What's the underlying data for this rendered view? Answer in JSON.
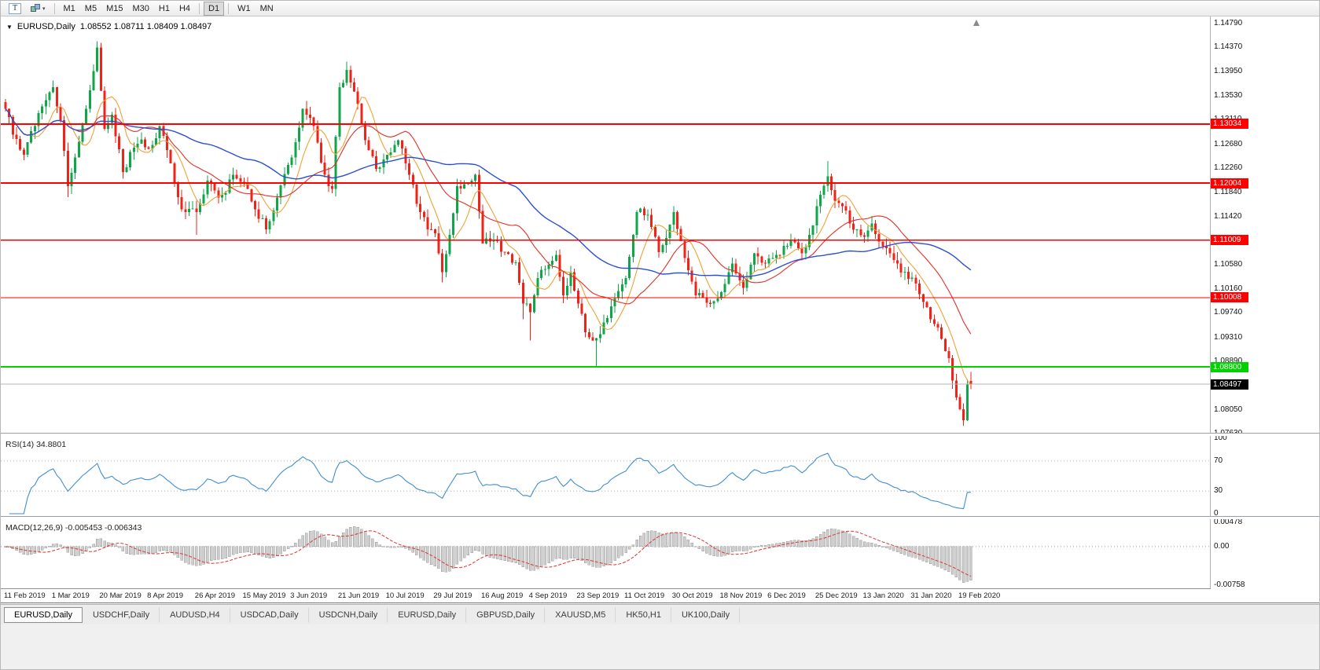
{
  "toolbar": {
    "tools": [
      {
        "name": "text-tool",
        "glyph": "T"
      },
      {
        "name": "pointer-tool",
        "glyph": "▾"
      }
    ],
    "timeframe_groups": [
      [
        "M1",
        "M5",
        "M15",
        "M30",
        "H1",
        "H4"
      ],
      [
        "D1"
      ],
      [
        "W1",
        "MN"
      ]
    ],
    "active_timeframe": "D1"
  },
  "chart": {
    "header": {
      "collapse_glyph": "▼",
      "title": "EURUSD,Daily",
      "ohlc": "1.08552 1.08711 1.08409 1.08497"
    },
    "colors": {
      "up": "#0fa648",
      "down": "#ef2318",
      "ma_fast": "#efa238",
      "ma_mid": "#e03028",
      "ma_slow": "#2c4fd0",
      "rsi": "#3f8ed2",
      "macd_hist": "#cdcdcd",
      "macd_hist_stroke": "#8f8f8f",
      "macd_signal": "#e23030",
      "price_line": "#b6b6b6",
      "price_badge": "#000000",
      "level_red": "#fe0000",
      "level_green": "#00d200"
    },
    "y_ticks": [
      "1.14790",
      "1.14370",
      "1.13950",
      "1.13530",
      "1.13110",
      "1.12680",
      "1.12260",
      "1.11840",
      "1.11420",
      "1.11000",
      "1.10580",
      "1.10160",
      "1.09740",
      "1.09310",
      "1.08890",
      "1.08470",
      "1.08050",
      "1.07630"
    ],
    "current_price": {
      "value": 1.08497,
      "label": "1.08497"
    }
  },
  "chart_data": {
    "type": "candlestick",
    "symbol": "EURUSD",
    "timeframe": "Daily",
    "ylim": [
      1.0765,
      1.1491
    ],
    "x_tick_labels": [
      "11 Feb 2019",
      "1 Mar 2019",
      "20 Mar 2019",
      "8 Apr 2019",
      "26 Apr 2019",
      "15 May 2019",
      "3 Jun 2019",
      "21 Jun 2019",
      "10 Jul 2019",
      "29 Jul 2019",
      "16 Aug 2019",
      "4 Sep 2019",
      "23 Sep 2019",
      "11 Oct 2019",
      "30 Oct 2019",
      "18 Nov 2019",
      "6 Dec 2019",
      "25 Dec 2019",
      "13 Jan 2020",
      "31 Jan 2020",
      "19 Feb 2020"
    ],
    "x_tick_step": 13,
    "price_waypoints": [
      [
        0,
        1.133
      ],
      [
        2,
        1.1285
      ],
      [
        5,
        1.125
      ],
      [
        8,
        1.13
      ],
      [
        11,
        1.1345
      ],
      [
        13,
        1.1368
      ],
      [
        15,
        1.131
      ],
      [
        17,
        1.1195
      ],
      [
        19,
        1.1245
      ],
      [
        22,
        1.133
      ],
      [
        25,
        1.1437
      ],
      [
        27,
        1.1295
      ],
      [
        29,
        1.132
      ],
      [
        32,
        1.122
      ],
      [
        35,
        1.1262
      ],
      [
        39,
        1.126
      ],
      [
        42,
        1.13
      ],
      [
        45,
        1.1235
      ],
      [
        48,
        1.1155
      ],
      [
        52,
        1.115
      ],
      [
        55,
        1.1205
      ],
      [
        58,
        1.1175
      ],
      [
        62,
        1.1215
      ],
      [
        65,
        1.12
      ],
      [
        68,
        1.1155
      ],
      [
        71,
        1.112
      ],
      [
        74,
        1.1175
      ],
      [
        78,
        1.1245
      ],
      [
        81,
        1.133
      ],
      [
        84,
        1.13
      ],
      [
        87,
        1.1215
      ],
      [
        89,
        1.119
      ],
      [
        91,
        1.1368
      ],
      [
        93,
        1.1398
      ],
      [
        95,
        1.136
      ],
      [
        98,
        1.1275
      ],
      [
        101,
        1.1225
      ],
      [
        104,
        1.125
      ],
      [
        107,
        1.1275
      ],
      [
        110,
        1.1215
      ],
      [
        113,
        1.115
      ],
      [
        115,
        1.112
      ],
      [
        117,
        1.1113
      ],
      [
        119,
        1.1045
      ],
      [
        121,
        1.111
      ],
      [
        123,
        1.1195
      ],
      [
        126,
        1.12
      ],
      [
        128,
        1.1215
      ],
      [
        130,
        1.1095
      ],
      [
        133,
        1.1102
      ],
      [
        136,
        1.108
      ],
      [
        139,
        1.1062
      ],
      [
        141,
        1.099
      ],
      [
        143,
        1.0975
      ],
      [
        145,
        1.1035
      ],
      [
        148,
        1.1058
      ],
      [
        150,
        1.1075
      ],
      [
        152,
        1.1005
      ],
      [
        154,
        1.1045
      ],
      [
        156,
        1.099
      ],
      [
        158,
        1.094
      ],
      [
        161,
        1.093
      ],
      [
        164,
        1.0965
      ],
      [
        169,
        1.1035
      ],
      [
        172,
        1.115
      ],
      [
        175,
        1.1145
      ],
      [
        178,
        1.108
      ],
      [
        180,
        1.1105
      ],
      [
        182,
        1.115
      ],
      [
        185,
        1.107
      ],
      [
        188,
        1.1005
      ],
      [
        192,
        1.099
      ],
      [
        195,
        1.101
      ],
      [
        198,
        1.106
      ],
      [
        201,
        1.1018
      ],
      [
        204,
        1.1078
      ],
      [
        207,
        1.106
      ],
      [
        211,
        1.1075
      ],
      [
        214,
        1.11
      ],
      [
        217,
        1.1078
      ],
      [
        219,
        1.111
      ],
      [
        222,
        1.118
      ],
      [
        224,
        1.1212
      ],
      [
        226,
        1.117
      ],
      [
        228,
        1.116
      ],
      [
        230,
        1.113
      ],
      [
        232,
        1.112
      ],
      [
        234,
        1.1107
      ],
      [
        236,
        1.113
      ],
      [
        239,
        1.109
      ],
      [
        242,
        1.1066
      ],
      [
        245,
        1.1046
      ],
      [
        248,
        1.1025
      ],
      [
        251,
        1.0984
      ],
      [
        253,
        1.0955
      ],
      [
        255,
        1.0929
      ],
      [
        257,
        1.0895
      ],
      [
        259,
        1.0827
      ],
      [
        260,
        1.0806
      ],
      [
        261,
        1.0787
      ],
      [
        262,
        1.0849
      ],
      [
        263,
        1.08497
      ]
    ],
    "spikes": [
      {
        "i": 17,
        "low": 1.1176
      },
      {
        "i": 25,
        "high": 1.1448
      },
      {
        "i": 52,
        "low": 1.111
      },
      {
        "i": 93,
        "high": 1.1412
      },
      {
        "i": 119,
        "low": 1.1027
      },
      {
        "i": 141,
        "low": 1.0963
      },
      {
        "i": 143,
        "low": 1.0926
      },
      {
        "i": 161,
        "low": 1.0879
      },
      {
        "i": 224,
        "high": 1.1239
      },
      {
        "i": 261,
        "low": 1.0777
      }
    ],
    "last_candle": {
      "open": 1.08552,
      "high": 1.08711,
      "low": 1.08409,
      "close": 1.08497
    },
    "levels": [
      {
        "price": 1.13034,
        "label": "1.13034",
        "color": "#fe0000",
        "width": 2
      },
      {
        "price": 1.12004,
        "label": "1.12004",
        "color": "#fe0000",
        "width": 2
      },
      {
        "price": 1.11009,
        "label": "1.11009",
        "color": "#fe0000",
        "width": 1.3
      },
      {
        "price": 1.10008,
        "label": "1.10008",
        "color": "#fe0000",
        "width": 1.3
      },
      {
        "price": 1.088,
        "label": "1.08800",
        "color": "#00d200",
        "width": 2
      }
    ],
    "moving_averages": [
      {
        "period": 8,
        "color_key": "ma_fast"
      },
      {
        "period": 20,
        "color_key": "ma_mid"
      },
      {
        "period": 50,
        "color_key": "ma_slow"
      }
    ],
    "indicators": {
      "rsi": {
        "label": "RSI(14) 34.8801",
        "period": 14,
        "value": 34.8801,
        "guide_levels": [
          70,
          30
        ],
        "scale_labels": [
          "100",
          "70",
          "30",
          "0"
        ]
      },
      "macd": {
        "label": "MACD(12,26,9) -0.005453 -0.006343",
        "fast": 12,
        "slow": 26,
        "signal": 9,
        "macd_value": -0.005453,
        "signal_value": -0.006343,
        "ylim": [
          -0.00758,
          0.00478
        ],
        "scale_labels": [
          "0.00478",
          "0.00",
          "-0.00758"
        ]
      }
    }
  },
  "tabs": {
    "items": [
      {
        "label": "EURUSD,Daily",
        "active": true
      },
      {
        "label": "USDCHF,Daily"
      },
      {
        "label": "AUDUSD,H4"
      },
      {
        "label": "USDCAD,Daily"
      },
      {
        "label": "USDCNH,Daily"
      },
      {
        "label": "EURUSD,Daily"
      },
      {
        "label": "GBPUSD,Daily"
      },
      {
        "label": "XAUUSD,M5"
      },
      {
        "label": "HK50,H1"
      },
      {
        "label": "UK100,Daily"
      }
    ]
  }
}
